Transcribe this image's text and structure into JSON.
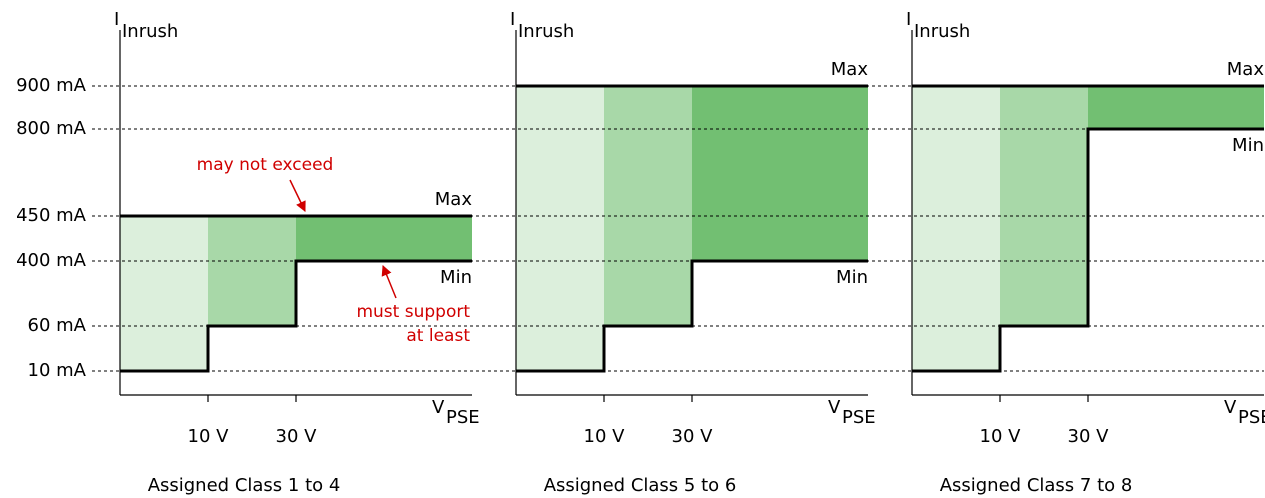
{
  "y_axis": {
    "symbol": "I",
    "subscript": "Inrush",
    "tick_labels": [
      "900 mA",
      "800 mA",
      "450 mA",
      "400 mA",
      "60 mA",
      "10 mA"
    ]
  },
  "x_axis": {
    "symbol": "V",
    "subscript": "PSE",
    "tick_labels": [
      "10 V",
      "30 V"
    ]
  },
  "max_label": "Max",
  "min_label": "Min",
  "annotations": {
    "max": "may not exceed",
    "min": [
      "must support",
      "at least"
    ]
  },
  "panels": [
    {
      "title": "Assigned Class 1 to 4"
    },
    {
      "title": "Assigned Class 5 to 6"
    },
    {
      "title": "Assigned Class 7 to 8"
    }
  ]
}
